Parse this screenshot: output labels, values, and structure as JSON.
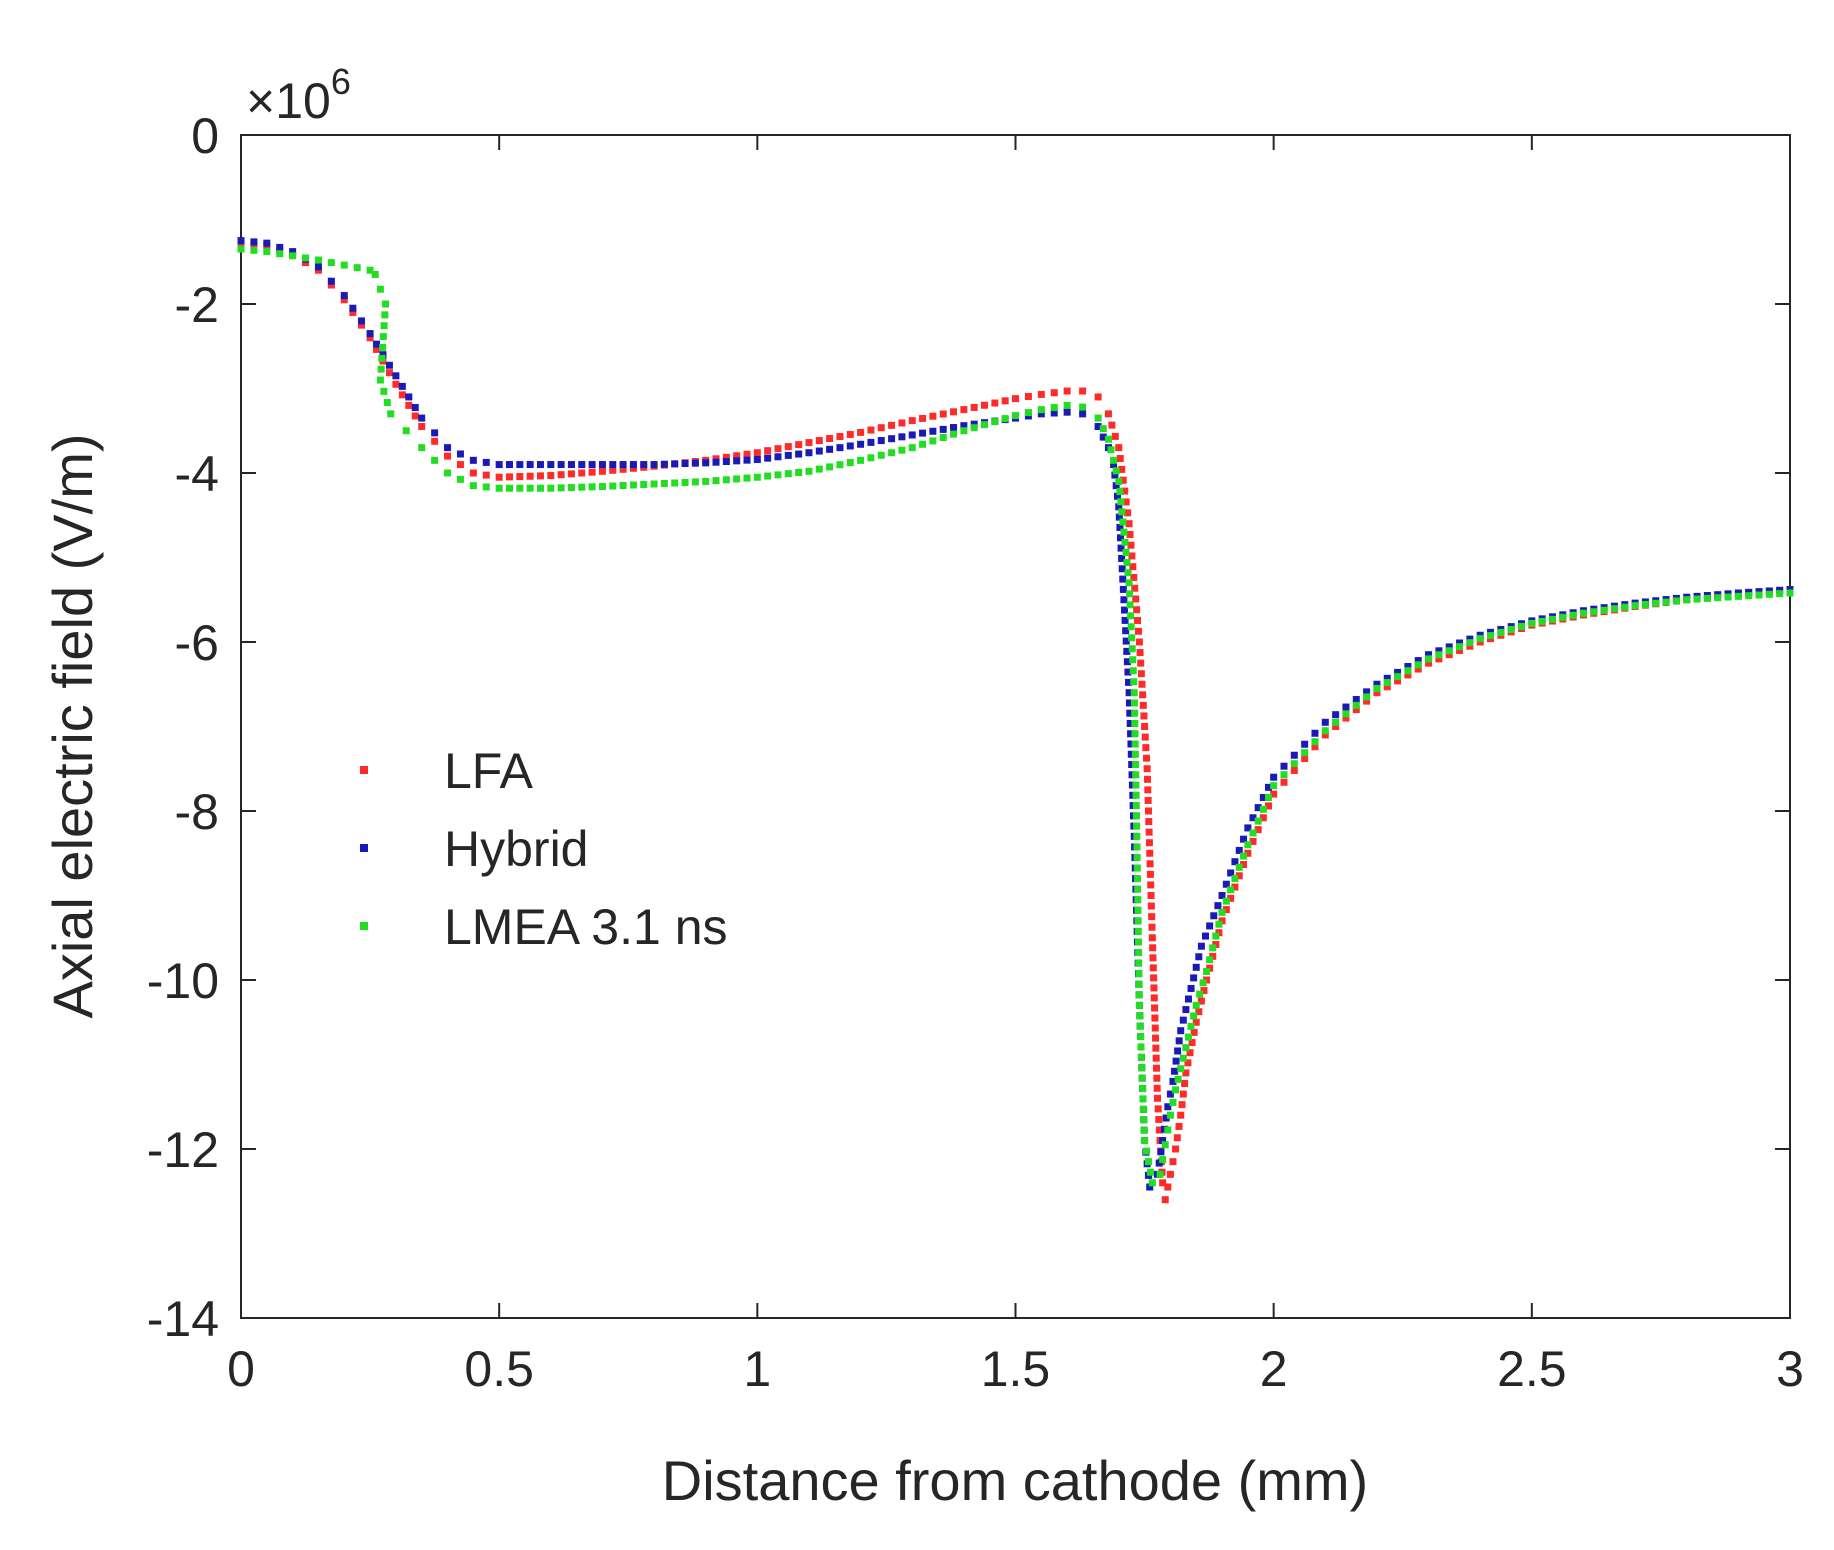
{
  "chart_data": {
    "type": "scatter",
    "title": "",
    "xlabel": "Distance from cathode (mm)",
    "ylabel": "Axial electric field (V/m)",
    "y_exponent_label": "×10",
    "y_exponent_power": "6",
    "xlim": [
      0,
      3
    ],
    "ylim": [
      -14,
      0
    ],
    "xticks": [
      0,
      0.5,
      1,
      1.5,
      2,
      2.5,
      3
    ],
    "xtick_labels": [
      "0",
      "0.5",
      "1",
      "1.5",
      "2",
      "2.5",
      "3"
    ],
    "yticks": [
      0,
      -2,
      -4,
      -6,
      -8,
      -10,
      -12,
      -14
    ],
    "ytick_labels": [
      "0",
      "-2",
      "-4",
      "-6",
      "-8",
      "-10",
      "-12",
      "-14"
    ],
    "grid": false,
    "legend_position": "middle-left",
    "series": [
      {
        "name": "LFA",
        "color": "#ff2a2a",
        "points": [
          [
            0,
            -1.3
          ],
          [
            0.05,
            -1.32
          ],
          [
            0.1,
            -1.42
          ],
          [
            0.15,
            -1.6
          ],
          [
            0.2,
            -1.95
          ],
          [
            0.25,
            -2.4
          ],
          [
            0.3,
            -2.95
          ],
          [
            0.35,
            -3.45
          ],
          [
            0.4,
            -3.8
          ],
          [
            0.45,
            -4.0
          ],
          [
            0.5,
            -4.05
          ],
          [
            0.6,
            -4.03
          ],
          [
            0.7,
            -3.98
          ],
          [
            0.8,
            -3.92
          ],
          [
            0.9,
            -3.85
          ],
          [
            1.0,
            -3.76
          ],
          [
            1.1,
            -3.64
          ],
          [
            1.2,
            -3.52
          ],
          [
            1.3,
            -3.38
          ],
          [
            1.4,
            -3.25
          ],
          [
            1.5,
            -3.12
          ],
          [
            1.55,
            -3.07
          ],
          [
            1.6,
            -3.03
          ],
          [
            1.63,
            -3.03
          ],
          [
            1.66,
            -3.1
          ],
          [
            1.68,
            -3.3
          ],
          [
            1.7,
            -3.7
          ],
          [
            1.72,
            -4.6
          ],
          [
            1.74,
            -6.0
          ],
          [
            1.755,
            -7.5
          ],
          [
            1.765,
            -9.5
          ],
          [
            1.775,
            -11.4
          ],
          [
            1.785,
            -12.4
          ],
          [
            1.79,
            -12.6
          ],
          [
            1.8,
            -12.3
          ],
          [
            1.81,
            -12.0
          ],
          [
            1.82,
            -11.6
          ],
          [
            1.83,
            -11.1
          ],
          [
            1.85,
            -10.5
          ],
          [
            1.87,
            -10.0
          ],
          [
            1.9,
            -9.3
          ],
          [
            1.95,
            -8.5
          ],
          [
            2.0,
            -7.8
          ],
          [
            2.1,
            -7.1
          ],
          [
            2.2,
            -6.6
          ],
          [
            2.3,
            -6.25
          ],
          [
            2.4,
            -6.0
          ],
          [
            2.5,
            -5.8
          ],
          [
            2.6,
            -5.68
          ],
          [
            2.7,
            -5.58
          ],
          [
            2.8,
            -5.5
          ],
          [
            2.9,
            -5.43
          ],
          [
            3.0,
            -5.38
          ]
        ]
      },
      {
        "name": "Hybrid",
        "color": "#1a1ab8",
        "points": [
          [
            0,
            -1.25
          ],
          [
            0.05,
            -1.28
          ],
          [
            0.1,
            -1.38
          ],
          [
            0.15,
            -1.56
          ],
          [
            0.2,
            -1.9
          ],
          [
            0.25,
            -2.35
          ],
          [
            0.3,
            -2.85
          ],
          [
            0.35,
            -3.35
          ],
          [
            0.4,
            -3.7
          ],
          [
            0.45,
            -3.85
          ],
          [
            0.5,
            -3.9
          ],
          [
            0.6,
            -3.9
          ],
          [
            0.7,
            -3.9
          ],
          [
            0.8,
            -3.9
          ],
          [
            0.9,
            -3.88
          ],
          [
            1.0,
            -3.84
          ],
          [
            1.1,
            -3.76
          ],
          [
            1.2,
            -3.66
          ],
          [
            1.3,
            -3.55
          ],
          [
            1.4,
            -3.44
          ],
          [
            1.5,
            -3.35
          ],
          [
            1.55,
            -3.3
          ],
          [
            1.6,
            -3.28
          ],
          [
            1.63,
            -3.3
          ],
          [
            1.66,
            -3.45
          ],
          [
            1.68,
            -3.7
          ],
          [
            1.69,
            -3.9
          ],
          [
            1.7,
            -4.4
          ],
          [
            1.71,
            -5.5
          ],
          [
            1.72,
            -6.6
          ],
          [
            1.73,
            -8.3
          ],
          [
            1.74,
            -10.3
          ],
          [
            1.75,
            -11.9
          ],
          [
            1.76,
            -12.45
          ],
          [
            1.775,
            -12.3
          ],
          [
            1.785,
            -11.9
          ],
          [
            1.795,
            -11.5
          ],
          [
            1.805,
            -11.2
          ],
          [
            1.82,
            -10.6
          ],
          [
            1.84,
            -10.1
          ],
          [
            1.86,
            -9.6
          ],
          [
            1.9,
            -9.0
          ],
          [
            1.95,
            -8.2
          ],
          [
            2.0,
            -7.6
          ],
          [
            2.1,
            -6.95
          ],
          [
            2.2,
            -6.5
          ],
          [
            2.3,
            -6.15
          ],
          [
            2.4,
            -5.92
          ],
          [
            2.5,
            -5.75
          ],
          [
            2.6,
            -5.63
          ],
          [
            2.7,
            -5.54
          ],
          [
            2.8,
            -5.47
          ],
          [
            2.9,
            -5.42
          ],
          [
            3.0,
            -5.38
          ]
        ]
      },
      {
        "name": "LMEA 3.1 ns",
        "color": "#22dd22",
        "points": [
          [
            0,
            -1.35
          ],
          [
            0.05,
            -1.38
          ],
          [
            0.1,
            -1.43
          ],
          [
            0.15,
            -1.48
          ],
          [
            0.2,
            -1.54
          ],
          [
            0.25,
            -1.6
          ],
          [
            0.26,
            -1.65
          ],
          [
            0.28,
            -2.0
          ],
          [
            0.27,
            -2.9
          ],
          [
            0.29,
            -3.3
          ],
          [
            0.32,
            -3.5
          ],
          [
            0.35,
            -3.7
          ],
          [
            0.4,
            -4.0
          ],
          [
            0.45,
            -4.15
          ],
          [
            0.5,
            -4.18
          ],
          [
            0.6,
            -4.18
          ],
          [
            0.7,
            -4.16
          ],
          [
            0.8,
            -4.13
          ],
          [
            0.9,
            -4.1
          ],
          [
            1.0,
            -4.05
          ],
          [
            1.1,
            -3.98
          ],
          [
            1.2,
            -3.85
          ],
          [
            1.3,
            -3.7
          ],
          [
            1.4,
            -3.5
          ],
          [
            1.5,
            -3.32
          ],
          [
            1.55,
            -3.25
          ],
          [
            1.6,
            -3.2
          ],
          [
            1.63,
            -3.22
          ],
          [
            1.66,
            -3.35
          ],
          [
            1.68,
            -3.6
          ],
          [
            1.7,
            -4.1
          ],
          [
            1.72,
            -5.3
          ],
          [
            1.73,
            -6.6
          ],
          [
            1.735,
            -8.3
          ],
          [
            1.74,
            -10.3
          ],
          [
            1.75,
            -11.9
          ],
          [
            1.765,
            -12.4
          ],
          [
            1.78,
            -12.3
          ],
          [
            1.79,
            -11.95
          ],
          [
            1.8,
            -11.6
          ],
          [
            1.81,
            -11.3
          ],
          [
            1.83,
            -10.8
          ],
          [
            1.85,
            -10.3
          ],
          [
            1.87,
            -9.9
          ],
          [
            1.9,
            -9.2
          ],
          [
            1.95,
            -8.4
          ],
          [
            2.0,
            -7.7
          ],
          [
            2.1,
            -7.05
          ],
          [
            2.2,
            -6.55
          ],
          [
            2.3,
            -6.2
          ],
          [
            2.4,
            -5.96
          ],
          [
            2.5,
            -5.78
          ],
          [
            2.6,
            -5.66
          ],
          [
            2.7,
            -5.57
          ],
          [
            2.8,
            -5.5
          ],
          [
            2.9,
            -5.46
          ],
          [
            3.0,
            -5.42
          ]
        ]
      }
    ]
  }
}
